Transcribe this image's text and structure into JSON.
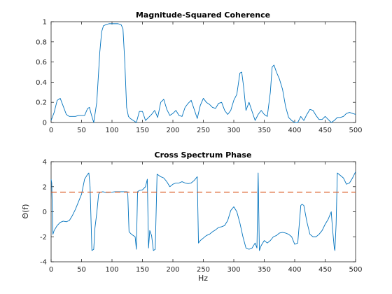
{
  "chart_data": [
    {
      "type": "line",
      "title": "Magnitude-Squared Coherence",
      "xlabel": "",
      "ylabel": "",
      "xlim": [
        0,
        500
      ],
      "ylim": [
        0,
        1
      ],
      "xticks": [
        0,
        50,
        100,
        150,
        200,
        250,
        300,
        350,
        400,
        450,
        500
      ],
      "yticks": [
        0,
        0.2,
        0.4,
        0.6,
        0.8,
        1
      ],
      "ytick_labels": [
        "0",
        "0.2",
        "0.4",
        "0.6",
        "0.8",
        "1"
      ],
      "grid": false,
      "series": [
        {
          "color": "#0072bd",
          "x": [
            0,
            5,
            10,
            15,
            20,
            25,
            30,
            35,
            40,
            45,
            50,
            55,
            60,
            63,
            66,
            70,
            75,
            80,
            83,
            86,
            90,
            95,
            100,
            105,
            110,
            115,
            118,
            121,
            124,
            127,
            130,
            135,
            140,
            145,
            150,
            155,
            160,
            165,
            170,
            175,
            180,
            185,
            190,
            195,
            200,
            205,
            210,
            215,
            220,
            225,
            230,
            235,
            240,
            245,
            250,
            255,
            260,
            265,
            270,
            275,
            280,
            285,
            290,
            295,
            300,
            305,
            310,
            313,
            316,
            320,
            325,
            330,
            335,
            340,
            345,
            350,
            355,
            360,
            363,
            366,
            370,
            375,
            380,
            385,
            390,
            395,
            400,
            405,
            410,
            415,
            420,
            425,
            430,
            435,
            440,
            445,
            450,
            455,
            460,
            465,
            470,
            475,
            480,
            485,
            490,
            495,
            500
          ],
          "y": [
            0.02,
            0.1,
            0.22,
            0.24,
            0.16,
            0.08,
            0.06,
            0.06,
            0.06,
            0.07,
            0.07,
            0.07,
            0.14,
            0.15,
            0.08,
            0.0,
            0.2,
            0.7,
            0.9,
            0.96,
            0.97,
            0.98,
            0.98,
            0.98,
            0.98,
            0.97,
            0.93,
            0.6,
            0.15,
            0.06,
            0.04,
            0.02,
            0.0,
            0.11,
            0.11,
            0.02,
            0.05,
            0.08,
            0.12,
            0.05,
            0.2,
            0.23,
            0.13,
            0.07,
            0.09,
            0.12,
            0.07,
            0.06,
            0.15,
            0.19,
            0.22,
            0.13,
            0.04,
            0.17,
            0.24,
            0.2,
            0.18,
            0.15,
            0.14,
            0.19,
            0.2,
            0.12,
            0.08,
            0.12,
            0.22,
            0.28,
            0.49,
            0.5,
            0.36,
            0.12,
            0.2,
            0.11,
            0.02,
            0.08,
            0.12,
            0.08,
            0.06,
            0.3,
            0.55,
            0.57,
            0.5,
            0.43,
            0.33,
            0.16,
            0.05,
            0.02,
            0.0,
            0.0,
            0.06,
            0.02,
            0.08,
            0.13,
            0.12,
            0.07,
            0.03,
            0.03,
            0.06,
            0.03,
            0.0,
            0.02,
            0.05,
            0.05,
            0.06,
            0.09,
            0.1,
            0.09,
            0.08
          ]
        }
      ]
    },
    {
      "type": "line",
      "title": "Cross Spectrum Phase",
      "xlabel": "Hz",
      "ylabel": "Θ(f)",
      "xlim": [
        0,
        500
      ],
      "ylim": [
        -4,
        4
      ],
      "xticks": [
        0,
        50,
        100,
        150,
        200,
        250,
        300,
        350,
        400,
        450,
        500
      ],
      "yticks": [
        -4,
        -2,
        0,
        2,
        4
      ],
      "ytick_labels": [
        "-4",
        "-2",
        "0",
        "2",
        "4"
      ],
      "grid": false,
      "series": [
        {
          "color": "#0072bd",
          "x": [
            0,
            1,
            3,
            5,
            10,
            15,
            20,
            25,
            30,
            35,
            40,
            45,
            50,
            55,
            60,
            62,
            64,
            67,
            70,
            72,
            75,
            78,
            80,
            85,
            90,
            95,
            100,
            105,
            110,
            115,
            120,
            125,
            126,
            128,
            130,
            132,
            135,
            138,
            140,
            142,
            145,
            150,
            155,
            158,
            160,
            162,
            165,
            168,
            171,
            174,
            177,
            180,
            185,
            190,
            195,
            200,
            205,
            210,
            215,
            220,
            225,
            230,
            235,
            240,
            242,
            245,
            250,
            255,
            260,
            265,
            270,
            275,
            280,
            285,
            290,
            295,
            300,
            305,
            310,
            315,
            320,
            325,
            330,
            335,
            338,
            340,
            342,
            345,
            350,
            355,
            360,
            365,
            370,
            375,
            380,
            385,
            390,
            395,
            400,
            405,
            410,
            412,
            415,
            420,
            425,
            430,
            435,
            440,
            445,
            450,
            455,
            460,
            462,
            465,
            466,
            468,
            470,
            475,
            480,
            485,
            490,
            495,
            500
          ],
          "y": [
            2.6,
            2.3,
            -1.8,
            -1.5,
            -1.1,
            -0.85,
            -0.75,
            -0.8,
            -0.7,
            -0.3,
            0.2,
            0.8,
            1.4,
            2.6,
            3.0,
            3.1,
            2.0,
            -3.1,
            -3.0,
            -1.3,
            -0.1,
            1.4,
            1.55,
            1.6,
            1.55,
            1.55,
            1.57,
            1.6,
            1.6,
            1.6,
            1.6,
            1.6,
            1.3,
            -1.6,
            -1.7,
            -1.8,
            -1.9,
            -2.0,
            -3.0,
            1.6,
            1.7,
            1.75,
            2.0,
            2.6,
            -2.9,
            -1.5,
            -1.9,
            -3.1,
            -3.0,
            3.0,
            2.9,
            2.8,
            2.7,
            2.4,
            2.0,
            2.2,
            2.3,
            2.3,
            2.4,
            2.3,
            2.25,
            2.3,
            2.5,
            2.8,
            -2.5,
            -2.3,
            -2.1,
            -1.9,
            -1.8,
            -1.6,
            -1.45,
            -1.25,
            -1.2,
            -1.1,
            -0.7,
            0.1,
            0.4,
            0.0,
            -0.9,
            -2.0,
            -2.9,
            -3.0,
            -2.9,
            -2.5,
            -2.9,
            3.1,
            -3.1,
            -2.7,
            -2.3,
            -2.5,
            -2.3,
            -2.0,
            -1.9,
            -1.7,
            -1.65,
            -1.7,
            -1.8,
            -2.0,
            -2.6,
            -2.5,
            0.5,
            0.6,
            0.5,
            -0.8,
            -1.8,
            -2.0,
            -2.0,
            -1.8,
            -1.5,
            -1.0,
            -0.6,
            0.0,
            -1.3,
            -2.9,
            -3.1,
            -1.0,
            3.1,
            2.9,
            2.7,
            2.2,
            2.3,
            2.7,
            3.2
          ]
        },
        {
          "color": "#d95319",
          "dashed": true,
          "x": [
            0,
            500
          ],
          "y": [
            1.5708,
            1.5708
          ]
        }
      ]
    }
  ]
}
